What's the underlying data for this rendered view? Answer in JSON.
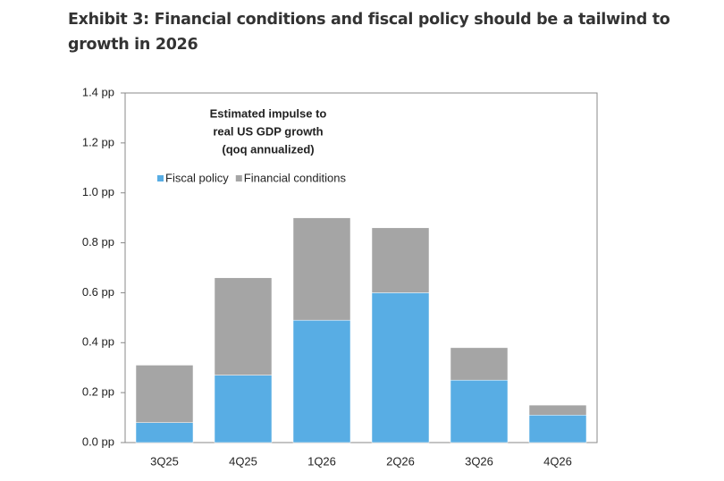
{
  "chart_data": {
    "type": "stacked-bar",
    "title": "Exhibit 3: Financial conditions and fiscal policy should be a tailwind to growth in 2026",
    "subtitle": [
      "Estimated impulse to",
      "real US GDP growth",
      "(qoq annualized)"
    ],
    "categories": [
      "3Q25",
      "4Q25",
      "1Q26",
      "2Q26",
      "3Q26",
      "4Q26"
    ],
    "series": [
      {
        "name": "Fiscal policy",
        "color": "#58ade4",
        "values": [
          0.08,
          0.27,
          0.49,
          0.6,
          0.25,
          0.11
        ]
      },
      {
        "name": "Financial conditions",
        "color": "#a5a5a5",
        "values": [
          0.23,
          0.39,
          0.41,
          0.26,
          0.13,
          0.04
        ]
      }
    ],
    "ylim": [
      0,
      1.4
    ],
    "yticks": [
      {
        "value": 0,
        "label": "0.0 pp"
      },
      {
        "value": 0.2,
        "label": "0.2 pp"
      },
      {
        "value": 0.4,
        "label": "0.4 pp"
      },
      {
        "value": 0.6,
        "label": "0.6 pp"
      },
      {
        "value": 0.8,
        "label": "0.8 pp"
      },
      {
        "value": 1.0,
        "label": "1.0 pp"
      },
      {
        "value": 1.2,
        "label": "1.2 pp"
      },
      {
        "value": 1.4,
        "label": "1.4 pp"
      }
    ],
    "grid": false
  }
}
